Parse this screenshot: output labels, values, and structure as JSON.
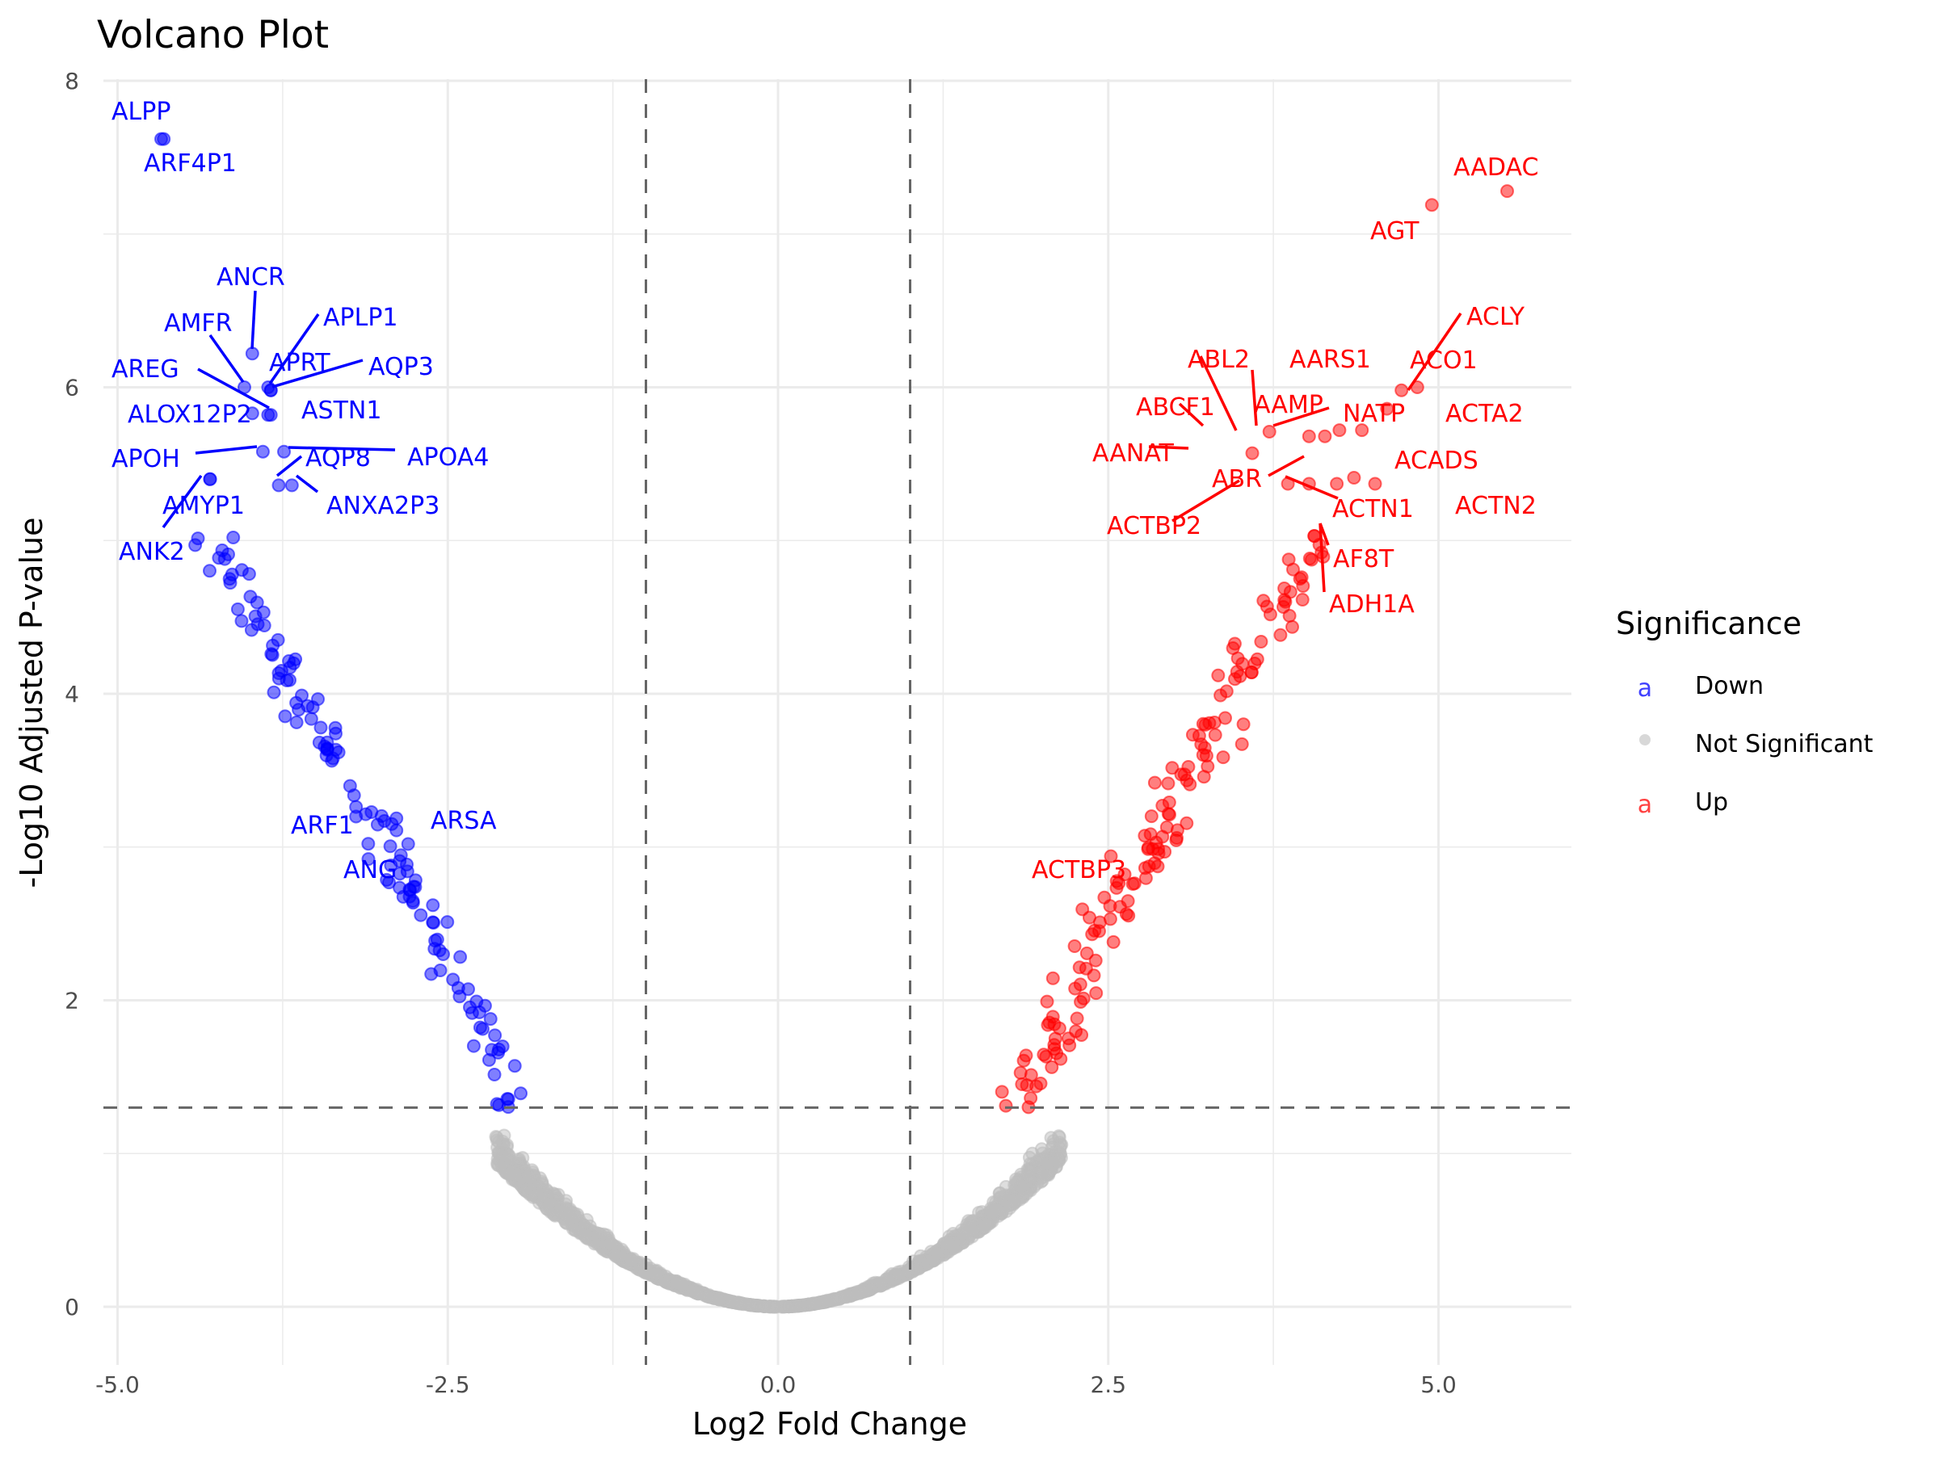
{
  "chart_data": {
    "type": "scatter",
    "title": "Volcano Plot",
    "xlabel": "Log2 Fold Change",
    "ylabel": "-Log10 Adjusted P-value",
    "xlim": [
      -5.3,
      6.0
    ],
    "ylim": [
      -0.35,
      8.0
    ],
    "x_ticks": [
      -5.0,
      -2.5,
      0.0,
      2.5,
      5.0
    ],
    "x_tick_labels": [
      "-5.0",
      "-2.5",
      "0.0",
      "2.5",
      "5.0"
    ],
    "y_ticks": [
      0,
      2,
      4,
      6,
      8
    ],
    "y_tick_labels": [
      "0",
      "2",
      "4",
      "6",
      "8"
    ],
    "grid": true,
    "thresholds": {
      "fold_change_lines": [
        -1,
        1
      ],
      "pvalue_line": 1.3
    },
    "legend": {
      "title": "Significance",
      "position": "right",
      "entries": [
        {
          "label": "Down",
          "color": "#0000ff",
          "key_glyph": "a"
        },
        {
          "label": "Not Significant",
          "color": "#bebebe",
          "key_glyph": "dot"
        },
        {
          "label": "Up",
          "color": "#ff0000",
          "key_glyph": "a"
        }
      ]
    },
    "colors": {
      "Down": "#0000ff",
      "Not Significant": "#bebebe",
      "Up": "#ff0000"
    },
    "labeled_points": [
      {
        "gene": "ALPP",
        "x": -4.67,
        "y": 7.62,
        "group": "Down"
      },
      {
        "gene": "ARF4P1",
        "x": -4.65,
        "y": 7.62,
        "group": "Down"
      },
      {
        "gene": "ANCR",
        "x": -3.98,
        "y": 6.22,
        "group": "Down"
      },
      {
        "gene": "AMFR",
        "x": -4.04,
        "y": 6.0,
        "group": "Down"
      },
      {
        "gene": "AREG",
        "x": -3.86,
        "y": 5.82,
        "group": "Down"
      },
      {
        "gene": "APLP1",
        "x": -3.86,
        "y": 6.0,
        "group": "Down"
      },
      {
        "gene": "APRT",
        "x": -3.84,
        "y": 5.98,
        "group": "Down"
      },
      {
        "gene": "AQP3",
        "x": -3.84,
        "y": 5.98,
        "group": "Down"
      },
      {
        "gene": "ALOX12P2",
        "x": -3.98,
        "y": 5.83,
        "group": "Down"
      },
      {
        "gene": "ASTN1",
        "x": -3.84,
        "y": 5.82,
        "group": "Down"
      },
      {
        "gene": "APOH",
        "x": -3.9,
        "y": 5.58,
        "group": "Down"
      },
      {
        "gene": "APOA4",
        "x": -3.74,
        "y": 5.58,
        "group": "Down"
      },
      {
        "gene": "AQP8",
        "x": -3.78,
        "y": 5.36,
        "group": "Down"
      },
      {
        "gene": "ANXA2P3",
        "x": -3.68,
        "y": 5.36,
        "group": "Down"
      },
      {
        "gene": "AMYP1",
        "x": -4.3,
        "y": 5.4,
        "group": "Down"
      },
      {
        "gene": "ANK2",
        "x": -4.3,
        "y": 5.4,
        "group": "Down"
      },
      {
        "gene": "ARF1",
        "x": -2.98,
        "y": 3.17,
        "group": "Down"
      },
      {
        "gene": "ARSA",
        "x": -2.8,
        "y": 3.02,
        "group": "Down"
      },
      {
        "gene": "ANG",
        "x": -2.93,
        "y": 2.88,
        "group": "Down"
      },
      {
        "gene": "AADAC",
        "x": 5.52,
        "y": 7.28,
        "group": "Up"
      },
      {
        "gene": "AGT",
        "x": 4.95,
        "y": 7.19,
        "group": "Up"
      },
      {
        "gene": "ACLY",
        "x": 4.72,
        "y": 5.98,
        "group": "Up"
      },
      {
        "gene": "ACO1",
        "x": 4.84,
        "y": 6.0,
        "group": "Up"
      },
      {
        "gene": "ABL2",
        "x": 4.02,
        "y": 5.68,
        "group": "Up"
      },
      {
        "gene": "AARS1",
        "x": 4.25,
        "y": 5.72,
        "group": "Up"
      },
      {
        "gene": "ABCF1",
        "x": 3.72,
        "y": 5.71,
        "group": "Up"
      },
      {
        "gene": "AAMP",
        "x": 4.14,
        "y": 5.68,
        "group": "Up"
      },
      {
        "gene": "NATP",
        "x": 4.61,
        "y": 5.86,
        "group": "Up"
      },
      {
        "gene": "ACTA2",
        "x": 4.42,
        "y": 5.72,
        "group": "Up"
      },
      {
        "gene": "AANAT",
        "x": 3.59,
        "y": 5.57,
        "group": "Up"
      },
      {
        "gene": "ABR",
        "x": 3.86,
        "y": 5.37,
        "group": "Up"
      },
      {
        "gene": "ACADS",
        "x": 4.36,
        "y": 5.41,
        "group": "Up"
      },
      {
        "gene": "ACTN1",
        "x": 4.23,
        "y": 5.37,
        "group": "Up"
      },
      {
        "gene": "ACTN2",
        "x": 4.52,
        "y": 5.37,
        "group": "Up"
      },
      {
        "gene": "ACTBP2",
        "x": 4.02,
        "y": 5.37,
        "group": "Up"
      },
      {
        "gene": "AF8T",
        "x": 4.06,
        "y": 5.03,
        "group": "Up"
      },
      {
        "gene": "ADH1A",
        "x": 4.06,
        "y": 5.03,
        "group": "Up"
      },
      {
        "gene": "ACTBP3",
        "x": 2.52,
        "y": 2.94,
        "group": "Up"
      }
    ],
    "point_summary": {
      "Down": {
        "approx_count": 150,
        "x_range": [
          -4.7,
          -1.95
        ],
        "y_range": [
          1.3,
          7.62
        ]
      },
      "Not Significant": {
        "approx_count": 1500,
        "x_range": [
          -2.2,
          2.2
        ],
        "y_range": [
          0.0,
          1.3
        ]
      },
      "Up": {
        "approx_count": 170,
        "x_range": [
          1.8,
          5.52
        ],
        "y_range": [
          1.3,
          7.28
        ]
      }
    }
  }
}
